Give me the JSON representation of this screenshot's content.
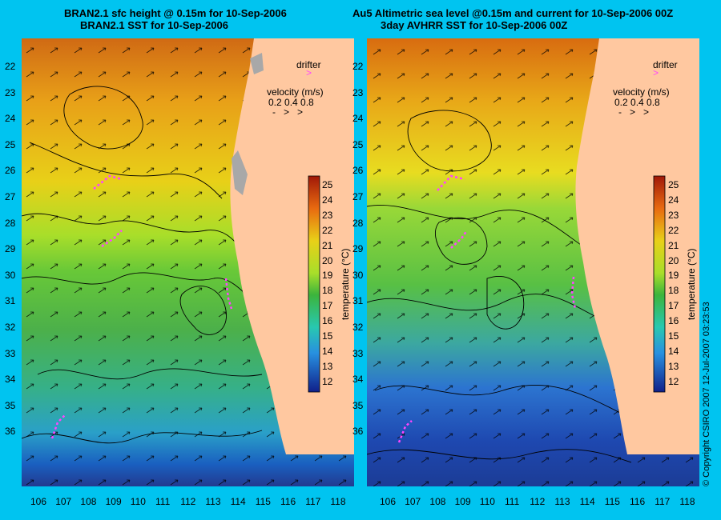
{
  "left_panel": {
    "title_line1": "BRAN2.1 sfc height @ 0.15m for 10-Sep-2006",
    "title_line2": "BRAN2.1 SST for 10-Sep-2006"
  },
  "right_panel": {
    "title_line1": "Au5 Altimetric sea level  @0.15m and current for 10-Sep-2006 00Z",
    "title_line2": "3day AVHRR SST for 10-Sep-2006 00Z"
  },
  "legend": {
    "drifter_label": "drifter",
    "velocity_label": "velocity (m/s)",
    "velocity_scale": "0.2  0.4  0.8"
  },
  "colorbar": {
    "label": "temperature (°C)",
    "ticks": [
      "25",
      "24",
      "23",
      "22",
      "21",
      "20",
      "19",
      "18",
      "17",
      "16",
      "15",
      "14",
      "13",
      "12"
    ]
  },
  "latitudes": [
    "22",
    "23",
    "24",
    "25",
    "26",
    "27",
    "28",
    "29",
    "30",
    "31",
    "32",
    "33",
    "34",
    "35",
    "36"
  ],
  "longitudes": [
    "106",
    "107",
    "108",
    "109",
    "110",
    "111",
    "112",
    "113",
    "114",
    "115",
    "116",
    "117",
    "118"
  ],
  "copyright": "© Copyright CSIRO 2007   12-Jul-2007 03:23:53",
  "colors": {
    "background": "#00c4f0",
    "land": "#ffc8a0",
    "drifter": "#ff44ff",
    "warm": "#d24a00",
    "cool": "#1e3ca0"
  }
}
